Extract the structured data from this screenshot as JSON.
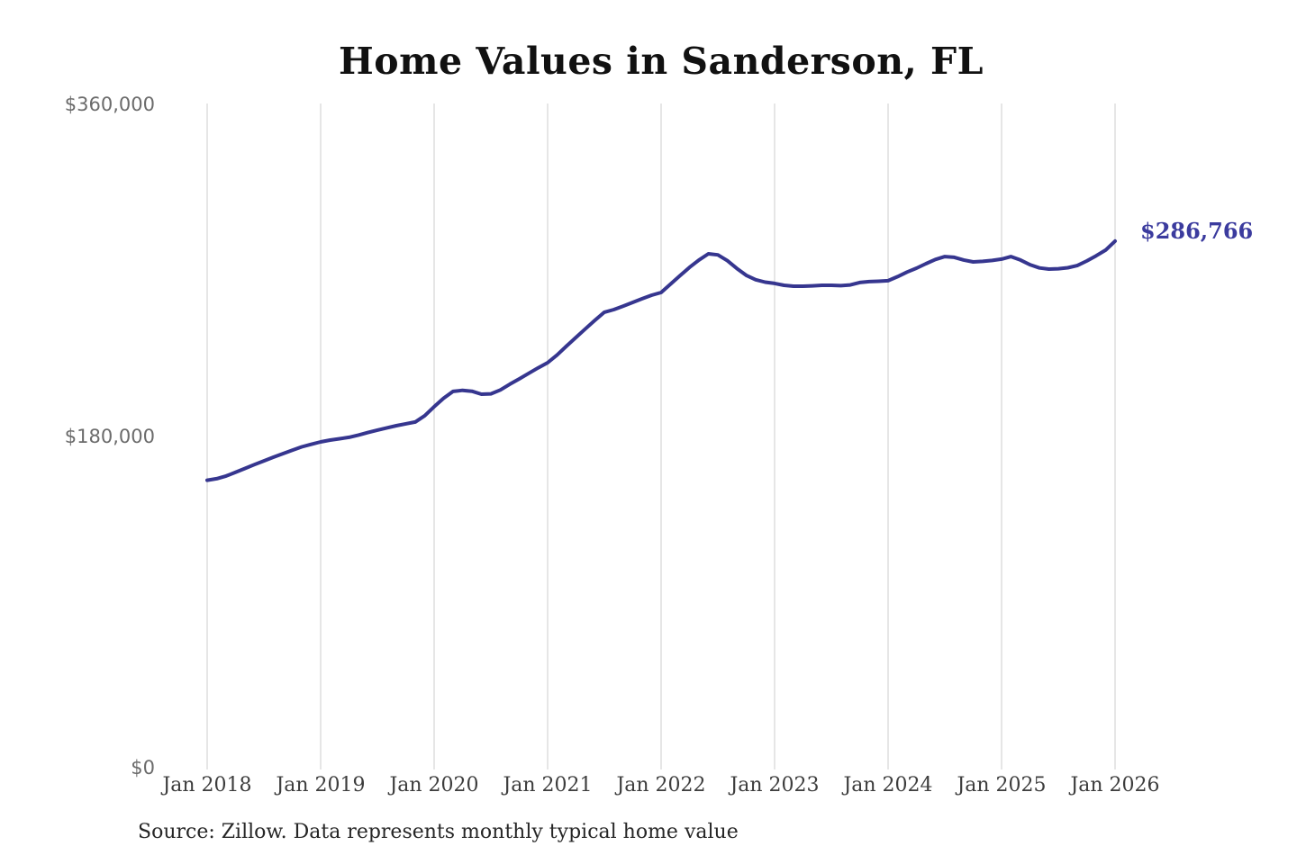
{
  "chart_data": {
    "type": "line",
    "title": "Home Values in Sanderson, FL",
    "source_note": "Source: Zillow. Data represents monthly typical home value",
    "legend": "none",
    "grid": "vertical-only",
    "ylim": [
      0,
      360000
    ],
    "y_tick_values": [
      0,
      180000,
      360000
    ],
    "y_tick_labels": [
      "$0",
      "$180,000",
      "$360,000"
    ],
    "x_tick_labels": [
      "Jan 2018",
      "Jan 2019",
      "Jan 2020",
      "Jan 2021",
      "Jan 2022",
      "Jan 2023",
      "Jan 2024",
      "Jan 2025",
      "Jan 2026"
    ],
    "x_start": "2018-01",
    "x_end": "2026-01",
    "x_interval": "monthly",
    "end_label": "$286,766",
    "end_value": 286766,
    "series": [
      {
        "name": "Typical home value",
        "color": "#36368f",
        "values": [
          157000,
          157800,
          159300,
          161300,
          163400,
          165500,
          167500,
          169500,
          171400,
          173300,
          175100,
          176500,
          177800,
          178800,
          179500,
          180300,
          181500,
          182900,
          184200,
          185400,
          186600,
          187600,
          188600,
          192000,
          196900,
          201500,
          205200,
          205800,
          205300,
          203700,
          203900,
          206000,
          209100,
          212000,
          215000,
          218000,
          220800,
          225000,
          229800,
          234500,
          239200,
          243800,
          248200,
          249600,
          251500,
          253500,
          255500,
          257400,
          258900,
          263500,
          268000,
          272500,
          276500,
          279900,
          279300,
          276200,
          272000,
          268200,
          265800,
          264500,
          263800,
          262800,
          262300,
          262300,
          262500,
          262800,
          262800,
          262600,
          263000,
          264300,
          264800,
          265000,
          265300,
          267500,
          270000,
          272100,
          274500,
          276800,
          278400,
          278000,
          276500,
          275500,
          275800,
          276300,
          277000,
          278400,
          276500,
          274000,
          272200,
          271600,
          271800,
          272300,
          273500,
          276000,
          278800,
          281900,
          286766
        ]
      }
    ],
    "colors": {
      "line": "#36368f",
      "end_label_text": "#3b3b9e",
      "gridline": "#cccccc",
      "title_text": "#111111",
      "x_label_text": "#3d3d3d",
      "y_label_text": "#6b6b6b",
      "source_text": "#262626",
      "background": "#ffffff"
    }
  }
}
